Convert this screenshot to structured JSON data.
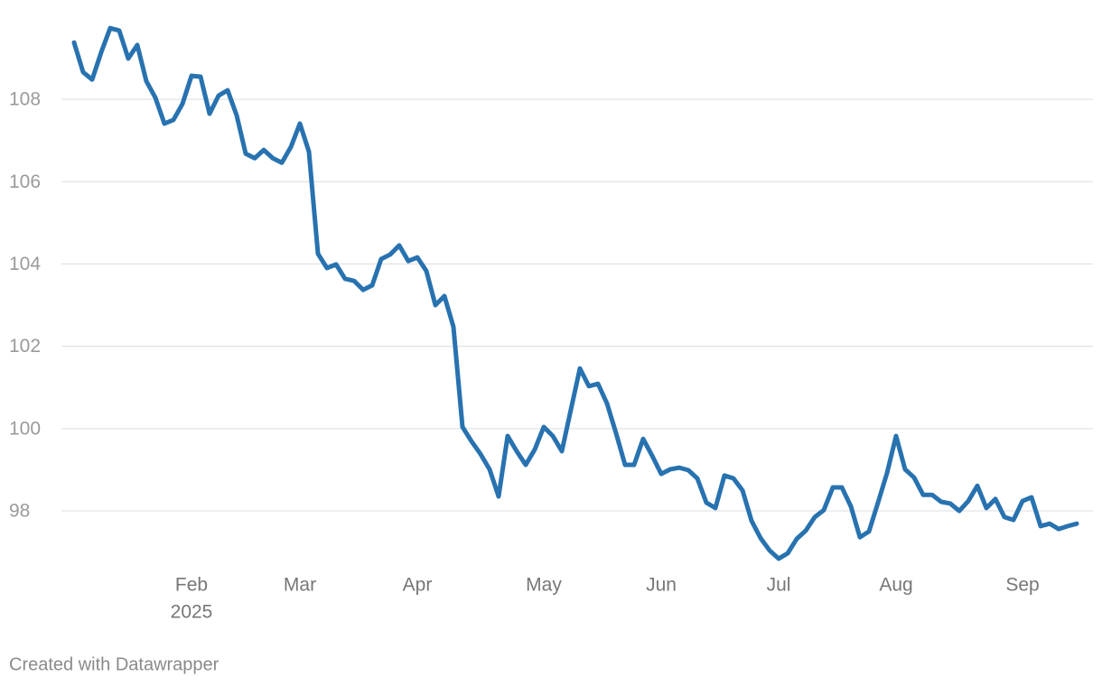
{
  "chart_data": {
    "type": "line",
    "categories": [
      null,
      null,
      null,
      null,
      null,
      null,
      null,
      null,
      null,
      null,
      null,
      null,
      null,
      "Feb",
      null,
      null,
      null,
      null,
      null,
      null,
      null,
      null,
      null,
      null,
      null,
      "Mar",
      null,
      null,
      null,
      null,
      null,
      null,
      null,
      null,
      null,
      null,
      null,
      null,
      "Apr",
      null,
      null,
      null,
      null,
      null,
      null,
      null,
      null,
      null,
      null,
      null,
      null,
      null,
      "May",
      null,
      null,
      null,
      null,
      null,
      null,
      null,
      null,
      null,
      null,
      null,
      null,
      "Jun",
      null,
      null,
      null,
      null,
      null,
      null,
      null,
      null,
      null,
      null,
      null,
      null,
      "Jul",
      null,
      null,
      null,
      null,
      null,
      null,
      null,
      null,
      null,
      null,
      null,
      null,
      "Aug",
      null,
      null,
      null,
      null,
      null,
      null,
      null,
      null,
      null,
      null,
      null,
      null,
      null,
      "Sep",
      null,
      null,
      null,
      null,
      null,
      null
    ],
    "year_label": "2025",
    "series": [
      {
        "name": null,
        "color": "#2872b0",
        "values": [
          109.38,
          108.66,
          108.48,
          109.14,
          109.73,
          109.67,
          108.99,
          109.32,
          108.44,
          108.04,
          107.41,
          107.5,
          107.89,
          108.57,
          108.55,
          107.65,
          108.09,
          108.22,
          107.61,
          106.68,
          106.57,
          106.77,
          106.57,
          106.46,
          106.84,
          107.41,
          106.73,
          104.25,
          103.9,
          103.99,
          103.64,
          103.59,
          103.37,
          103.48,
          104.12,
          104.23,
          104.45,
          104.07,
          104.16,
          103.83,
          103.0,
          103.22,
          102.47,
          100.04,
          99.69,
          99.38,
          99.01,
          98.35,
          99.82,
          99.45,
          99.12,
          99.49,
          100.04,
          99.82,
          99.45,
          100.46,
          101.46,
          101.03,
          101.09,
          100.61,
          99.89,
          99.12,
          99.12,
          99.75,
          99.34,
          98.9,
          99.01,
          99.05,
          98.99,
          98.79,
          98.2,
          98.07,
          98.86,
          98.79,
          98.5,
          97.76,
          97.34,
          97.04,
          96.84,
          96.97,
          97.32,
          97.52,
          97.85,
          98.02,
          98.57,
          98.57,
          98.11,
          97.36,
          97.5,
          98.2,
          98.92,
          99.82,
          99.01,
          98.81,
          98.39,
          98.39,
          98.22,
          98.18,
          98.0,
          98.24,
          98.61,
          98.07,
          98.29,
          97.85,
          97.78,
          98.24,
          98.33,
          97.63,
          97.69,
          97.56,
          97.63,
          97.69
        ]
      }
    ],
    "ylim": [
      96.7,
      109.9
    ],
    "yticks": [
      98,
      100,
      102,
      104,
      106,
      108
    ],
    "grid": true,
    "credit": "Created with Datawrapper"
  }
}
